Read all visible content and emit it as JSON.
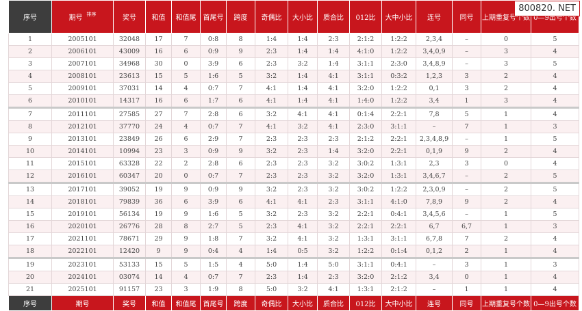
{
  "watermark": "800820. NET",
  "header": [
    "序号",
    "期号",
    "奖号",
    "和值",
    "和值尾",
    "首尾号",
    "跨度",
    "奇偶比",
    "大小比",
    "质合比",
    "012比",
    "大中小比",
    "连号",
    "同号",
    "上期重复号个数",
    "0—9出号个数"
  ],
  "sort_label": "排序",
  "rows": [
    [
      "1",
      "2005101",
      "32048",
      "17",
      "7",
      "0:8",
      "8",
      "1:4",
      "1:4",
      "2:3",
      "2:1:2",
      "1:2:2",
      "2,3,4",
      "–",
      "0",
      "5"
    ],
    [
      "2",
      "2006101",
      "43009",
      "16",
      "6",
      "0:9",
      "9",
      "2:3",
      "1:4",
      "1:4",
      "4:1:0",
      "1:2:2",
      "3,4,0,9",
      "–",
      "3",
      "4"
    ],
    [
      "3",
      "2007101",
      "34968",
      "30",
      "0",
      "3:9",
      "6",
      "2:3",
      "3:2",
      "1:4",
      "3:1:1",
      "2:3:0",
      "3,4,8,9",
      "–",
      "3",
      "5"
    ],
    [
      "4",
      "2008101",
      "23613",
      "15",
      "5",
      "1:6",
      "5",
      "3:2",
      "1:4",
      "4:1",
      "3:1:1",
      "0:3:2",
      "1,2,3",
      "3",
      "2",
      "4"
    ],
    [
      "5",
      "2009101",
      "37031",
      "14",
      "4",
      "0:7",
      "7",
      "4:1",
      "1:4",
      "4:1",
      "3:2:0",
      "1:2:2",
      "0,1",
      "3",
      "2",
      "4"
    ],
    [
      "6",
      "2010101",
      "14317",
      "16",
      "6",
      "1:7",
      "6",
      "4:1",
      "1:4",
      "4:1",
      "1:4:0",
      "1:2:2",
      "3,4",
      "1",
      "3",
      "4"
    ],
    [
      "7",
      "2011101",
      "27585",
      "27",
      "7",
      "2:8",
      "6",
      "3:2",
      "4:1",
      "4:1",
      "0:1:4",
      "2:2:1",
      "7,8",
      "5",
      "1",
      "4"
    ],
    [
      "8",
      "2012101",
      "37770",
      "24",
      "4",
      "0:7",
      "7",
      "4:1",
      "3:2",
      "4:1",
      "2:3:0",
      "3:1:1",
      "–",
      "7",
      "1",
      "3"
    ],
    [
      "9",
      "2013101",
      "23849",
      "26",
      "6",
      "2:9",
      "7",
      "2:3",
      "2:3",
      "2:3",
      "2:1:2",
      "2:2:1",
      "2,3,4,8,9",
      "–",
      "1",
      "5"
    ],
    [
      "10",
      "2014101",
      "10994",
      "23",
      "3",
      "0:9",
      "9",
      "3:2",
      "2:3",
      "1:4",
      "3:2:0",
      "2:2:1",
      "0,1,9",
      "9",
      "2",
      "4"
    ],
    [
      "11",
      "2015101",
      "63328",
      "22",
      "2",
      "2:8",
      "6",
      "2:3",
      "2:3",
      "3:2",
      "3:0:2",
      "1:3:1",
      "2,3",
      "3",
      "0",
      "4"
    ],
    [
      "12",
      "2016101",
      "60347",
      "20",
      "0",
      "0:7",
      "7",
      "2:3",
      "2:3",
      "3:2",
      "3:2:0",
      "1:3:1",
      "3,4,6,7",
      "–",
      "2",
      "5"
    ],
    [
      "13",
      "2017101",
      "39052",
      "19",
      "9",
      "0:9",
      "9",
      "3:2",
      "2:3",
      "3:2",
      "3:0:2",
      "1:2:2",
      "2,3,0,9",
      "–",
      "2",
      "5"
    ],
    [
      "14",
      "2018101",
      "79839",
      "36",
      "6",
      "3:9",
      "6",
      "4:1",
      "4:1",
      "2:3",
      "3:1:1",
      "4:1:0",
      "7,8,9",
      "9",
      "2",
      "4"
    ],
    [
      "15",
      "2019101",
      "56134",
      "19",
      "9",
      "1:6",
      "5",
      "3:2",
      "2:3",
      "3:2",
      "2:2:1",
      "0:4:1",
      "3,4,5,6",
      "–",
      "1",
      "5"
    ],
    [
      "16",
      "2020101",
      "26776",
      "28",
      "8",
      "2:7",
      "5",
      "2:3",
      "4:1",
      "3:2",
      "2:2:1",
      "2:2:1",
      "6,7",
      "6,7",
      "1",
      "3"
    ],
    [
      "17",
      "2021101",
      "78671",
      "29",
      "9",
      "1:8",
      "7",
      "3:2",
      "4:1",
      "3:2",
      "1:3:1",
      "3:1:1",
      "6,7,8",
      "7",
      "2",
      "4"
    ],
    [
      "18",
      "2022101",
      "12420",
      "9",
      "9",
      "0:4",
      "4",
      "1:4",
      "0:5",
      "3:2",
      "1:2:2",
      "0:1:4",
      "0,1,2",
      "2",
      "1",
      "4"
    ],
    [
      "19",
      "2023101",
      "53133",
      "15",
      "5",
      "1:5",
      "4",
      "5:0",
      "1:4",
      "5:0",
      "3:1:1",
      "0:4:1",
      "–",
      "3",
      "1",
      "3"
    ],
    [
      "20",
      "2024101",
      "03074",
      "14",
      "4",
      "0:7",
      "7",
      "2:3",
      "1:4",
      "2:3",
      "3:2:0",
      "2:1:2",
      "3,4",
      "0",
      "1",
      "4"
    ],
    [
      "21",
      "2025101",
      "91157",
      "23",
      "3",
      "1:9",
      "8",
      "5:0",
      "3:2",
      "4:1",
      "1:3:1",
      "2:1:2",
      "–",
      "1",
      "1",
      "4"
    ]
  ],
  "footer": [
    "序号",
    "期号",
    "奖号",
    "和值",
    "和值尾",
    "首尾号",
    "跨度",
    "奇偶比",
    "大小比",
    "质合比",
    "012比",
    "大中小比",
    "连号",
    "同号",
    "上期重复号个数",
    "0—9出号个数"
  ]
}
